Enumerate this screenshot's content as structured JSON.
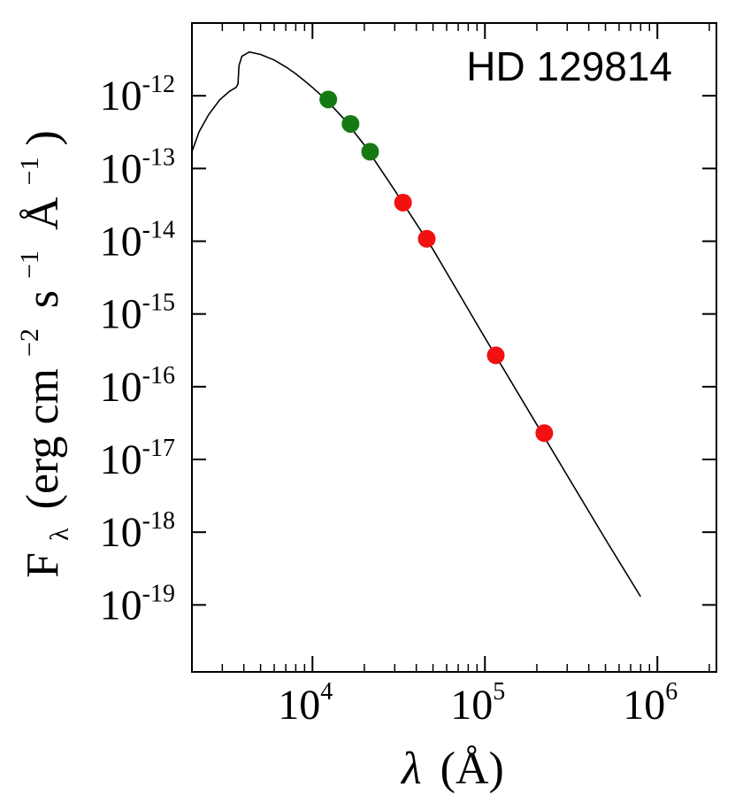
{
  "chart_data": {
    "type": "scatter",
    "title": "HD 129814",
    "xlabel": {
      "symbol": "λ",
      "unit": "(Å)"
    },
    "ylabel": {
      "main": "F",
      "sub": "λ",
      "unit_open": "(erg cm",
      "exp1": "−2",
      "s": "s",
      "exp2": "−1",
      "angstrom": "Å",
      "exp3": "−1",
      "unit_close": ")"
    },
    "xscale": "log",
    "yscale": "log",
    "xlim": [
      2000,
      2200000
    ],
    "ylim": [
      1.2e-20,
      1e-11
    ],
    "grid": false,
    "x_ticks": [
      {
        "base": "10",
        "exp": "4",
        "value": 10000
      },
      {
        "base": "10",
        "exp": "5",
        "value": 100000
      },
      {
        "base": "10",
        "exp": "6",
        "value": 1000000
      }
    ],
    "y_ticks": [
      {
        "base": "10",
        "exp": "-12",
        "value": 1e-12
      },
      {
        "base": "10",
        "exp": "-13",
        "value": 1e-13
      },
      {
        "base": "10",
        "exp": "-14",
        "value": 1e-14
      },
      {
        "base": "10",
        "exp": "-15",
        "value": 1e-15
      },
      {
        "base": "10",
        "exp": "-16",
        "value": 1e-16
      },
      {
        "base": "10",
        "exp": "-17",
        "value": 1e-17
      },
      {
        "base": "10",
        "exp": "-18",
        "value": 1e-18
      },
      {
        "base": "10",
        "exp": "-19",
        "value": 1e-19
      }
    ],
    "series": [
      {
        "color": "#157a12",
        "marker": "circle",
        "points": [
          {
            "x": 12350,
            "y": 8.9e-13
          },
          {
            "x": 16620,
            "y": 4.1e-13
          },
          {
            "x": 21590,
            "y": 1.7e-13
          }
        ]
      },
      {
        "color": "#f21111",
        "marker": "circle",
        "points": [
          {
            "x": 33500,
            "y": 3.4e-14
          },
          {
            "x": 46000,
            "y": 1.08e-14
          },
          {
            "x": 115600,
            "y": 2.7e-16
          },
          {
            "x": 220900,
            "y": 2.3e-17
          }
        ]
      },
      {
        "color": "#000000",
        "marker": "none",
        "style": "line",
        "points": [
          {
            "x": 2000,
            "y": 1.7e-13
          },
          {
            "x": 2200,
            "y": 3.2e-13
          },
          {
            "x": 2500,
            "y": 5.5e-13
          },
          {
            "x": 2900,
            "y": 8.8e-13
          },
          {
            "x": 3300,
            "y": 1.15e-12
          },
          {
            "x": 3600,
            "y": 1.3e-12
          },
          {
            "x": 3700,
            "y": 1.45e-12
          },
          {
            "x": 3750,
            "y": 2.6e-12
          },
          {
            "x": 3900,
            "y": 3.5e-12
          },
          {
            "x": 4300,
            "y": 4e-12
          },
          {
            "x": 5000,
            "y": 3.7e-12
          },
          {
            "x": 6000,
            "y": 3.1e-12
          },
          {
            "x": 7000,
            "y": 2.5e-12
          },
          {
            "x": 8000,
            "y": 2e-12
          },
          {
            "x": 9000,
            "y": 1.6e-12
          },
          {
            "x": 10000,
            "y": 1.3e-12
          },
          {
            "x": 12000,
            "y": 8.8e-13
          },
          {
            "x": 15000,
            "y": 5e-13
          },
          {
            "x": 20000,
            "y": 2.1e-13
          },
          {
            "x": 30000,
            "y": 5e-14
          },
          {
            "x": 50000,
            "y": 7.7e-15
          },
          {
            "x": 100000,
            "y": 4.7e-16
          },
          {
            "x": 200000,
            "y": 3e-17
          },
          {
            "x": 500000,
            "y": 8e-19
          },
          {
            "x": 800000,
            "y": 1.3e-19
          }
        ]
      }
    ]
  }
}
